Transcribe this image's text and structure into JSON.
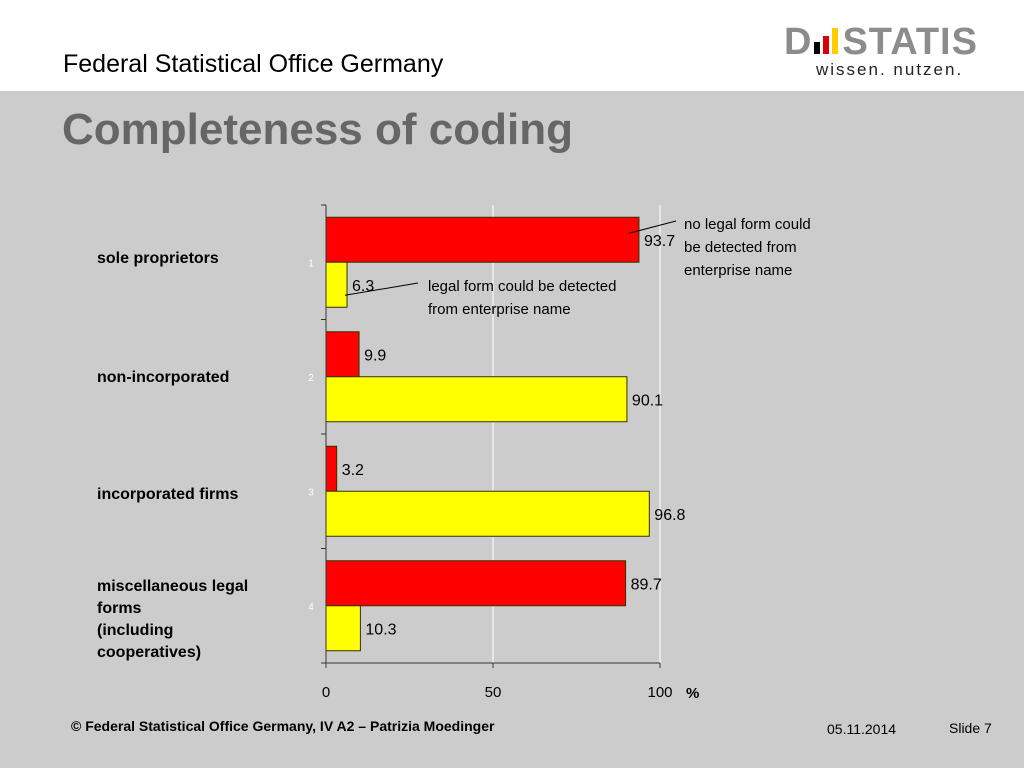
{
  "header": {
    "org_title": "Federal Statistical Office Germany",
    "logo_word_left": "D",
    "logo_word_right": "STATIS",
    "logo_tagline": "wissen. nutzen.",
    "logo_flag_colors": [
      "#000000",
      "#dd0000",
      "#ffcc00"
    ]
  },
  "slide_title": "Completeness of coding",
  "footer": {
    "copyright": "© Federal Statistical Office Germany, IV A2 – Patrizia Moedinger",
    "date": "05.11.2014",
    "slide": "Slide 7"
  },
  "colors": {
    "no_legal_form": "#ff0000",
    "legal_form": "#ffff00",
    "title": "#666666",
    "background": "#cccccc"
  },
  "chart_data": {
    "type": "bar",
    "orientation": "horizontal",
    "title": "Completeness of coding",
    "categories": [
      "sole proprietors",
      "non-incorporated",
      "incorporated firms",
      "miscellaneous legal forms (including cooperatives)"
    ],
    "category_labels": [
      [
        "sole proprietors"
      ],
      [
        "non-incorporated"
      ],
      [
        "incorporated firms"
      ],
      [
        "miscellaneous legal",
        "forms",
        "(including",
        "cooperatives)"
      ]
    ],
    "category_ticks": [
      "1",
      "2",
      "3",
      "4"
    ],
    "series": [
      {
        "name": "no legal form could be detected from enterprise name",
        "color": "#ff0000",
        "values": [
          93.7,
          9.9,
          3.2,
          89.7
        ]
      },
      {
        "name": "legal form could be detected from enterprise name",
        "color": "#ffff00",
        "values": [
          6.3,
          90.1,
          96.8,
          10.3
        ]
      }
    ],
    "annotations": [
      {
        "series": 0,
        "category": 0,
        "lines": [
          "no legal form could",
          "be detected from",
          "enterprise name"
        ]
      },
      {
        "series": 1,
        "category": 0,
        "lines": [
          "legal form could be detected",
          "from enterprise name"
        ]
      }
    ],
    "xlabel": "%",
    "ylabel": "",
    "xlim": [
      0,
      100
    ],
    "xticks": [
      0,
      50,
      100
    ],
    "grid": true,
    "legend": "none"
  }
}
